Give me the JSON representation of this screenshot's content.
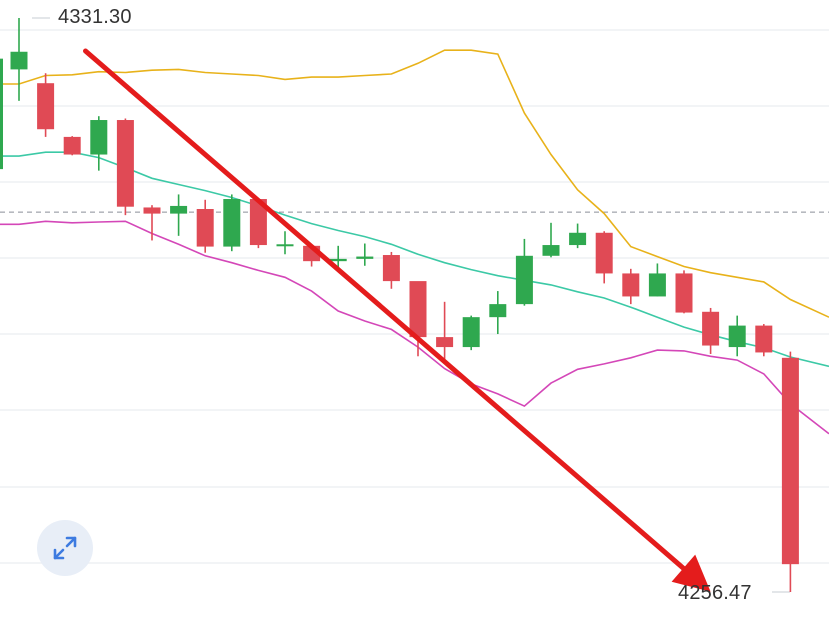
{
  "chart_data": {
    "type": "candlestick",
    "price_range": [
      4256.47,
      4331.3
    ],
    "grid": true,
    "labels": {
      "high": "4331.30",
      "low": "4256.47"
    },
    "colors": {
      "up": "#2fa84f",
      "down": "#e04a55",
      "band_upper": "#e8b21a",
      "band_middle": "#3cc9a6",
      "band_lower": "#d447b8",
      "trend_arrow": "#e41c1c",
      "grid": "#edf0f4",
      "dashed_ref": "#8a8f99"
    },
    "reference_price": 4306.0,
    "candles": [
      {
        "o": 4324.6,
        "h": 4331.3,
        "l": 4320.5,
        "c": 4326.9
      },
      {
        "o": 4322.8,
        "h": 4324.1,
        "l": 4315.8,
        "c": 4316.8
      },
      {
        "o": 4315.8,
        "h": 4315.9,
        "l": 4313.4,
        "c": 4313.5
      },
      {
        "o": 4313.5,
        "h": 4318.5,
        "l": 4311.4,
        "c": 4318.0
      },
      {
        "o": 4318.0,
        "h": 4318.2,
        "l": 4305.6,
        "c": 4306.7
      },
      {
        "o": 4306.6,
        "h": 4306.9,
        "l": 4302.3,
        "c": 4305.8
      },
      {
        "o": 4305.8,
        "h": 4308.3,
        "l": 4302.9,
        "c": 4306.8
      },
      {
        "o": 4306.4,
        "h": 4307.6,
        "l": 4300.7,
        "c": 4301.5
      },
      {
        "o": 4301.5,
        "h": 4308.3,
        "l": 4300.9,
        "c": 4307.7
      },
      {
        "o": 4307.7,
        "h": 4307.8,
        "l": 4301.3,
        "c": 4301.7
      },
      {
        "o": 4301.8,
        "h": 4303.5,
        "l": 4300.5,
        "c": 4301.8
      },
      {
        "o": 4301.6,
        "h": 4301.8,
        "l": 4298.9,
        "c": 4299.6
      },
      {
        "o": 4299.6,
        "h": 4301.6,
        "l": 4298.4,
        "c": 4299.9
      },
      {
        "o": 4299.9,
        "h": 4301.9,
        "l": 4299.0,
        "c": 4300.2
      },
      {
        "o": 4300.4,
        "h": 4300.8,
        "l": 4296.0,
        "c": 4297.0
      },
      {
        "o": 4297.0,
        "h": 4296.9,
        "l": 4287.2,
        "c": 4289.7
      },
      {
        "o": 4289.7,
        "h": 4294.3,
        "l": 4286.7,
        "c": 4288.4
      },
      {
        "o": 4288.4,
        "h": 4292.5,
        "l": 4288.0,
        "c": 4292.3
      },
      {
        "o": 4292.3,
        "h": 4295.7,
        "l": 4290.1,
        "c": 4294.0
      },
      {
        "o": 4294.0,
        "h": 4302.5,
        "l": 4293.8,
        "c": 4300.3
      },
      {
        "o": 4300.3,
        "h": 4304.6,
        "l": 4300.1,
        "c": 4301.7
      },
      {
        "o": 4301.7,
        "h": 4304.5,
        "l": 4301.3,
        "c": 4303.3
      },
      {
        "o": 4303.3,
        "h": 4303.5,
        "l": 4296.7,
        "c": 4298.0
      },
      {
        "o": 4298.0,
        "h": 4298.6,
        "l": 4294.0,
        "c": 4295.0
      },
      {
        "o": 4295.0,
        "h": 4299.3,
        "l": 4295.0,
        "c": 4298.0
      },
      {
        "o": 4298.0,
        "h": 4298.4,
        "l": 4292.8,
        "c": 4292.9
      },
      {
        "o": 4293.0,
        "h": 4293.5,
        "l": 4287.5,
        "c": 4288.6
      },
      {
        "o": 4288.4,
        "h": 4292.5,
        "l": 4287.2,
        "c": 4291.2
      },
      {
        "o": 4291.2,
        "h": 4291.4,
        "l": 4287.2,
        "c": 4287.7
      },
      {
        "o": 4287.0,
        "h": 4287.8,
        "l": 4256.47,
        "c": 4260.1
      }
    ],
    "bands": {
      "upper": [
        4322.7,
        4323.8,
        4323.9,
        4324.3,
        4324.2,
        4324.5,
        4324.6,
        4324.2,
        4324.0,
        4323.8,
        4323.3,
        4323.6,
        4323.6,
        4323.8,
        4324.0,
        4325.4,
        4327.1,
        4327.1,
        4326.6,
        4318.9,
        4313.5,
        4308.9,
        4305.8,
        4301.5,
        4300.2,
        4298.9,
        4298.1,
        4297.5,
        4296.9,
        4294.6
      ],
      "middle": [
        4313.3,
        4313.8,
        4313.8,
        4313.1,
        4311.8,
        4310.4,
        4309.6,
        4308.8,
        4307.9,
        4306.8,
        4305.6,
        4304.5,
        4303.6,
        4302.8,
        4301.8,
        4300.5,
        4299.4,
        4298.5,
        4297.7,
        4297.1,
        4296.5,
        4295.6,
        4294.8,
        4293.6,
        4292.3,
        4291.0,
        4290.0,
        4289.1,
        4288.3,
        4287.1
      ],
      "lower": [
        4304.4,
        4304.8,
        4304.6,
        4304.7,
        4304.8,
        4303.2,
        4301.8,
        4300.3,
        4299.4,
        4298.4,
        4297.5,
        4295.7,
        4293.1,
        4291.8,
        4290.7,
        4288.4,
        4285.6,
        4283.6,
        4282.3,
        4280.7,
        4283.7,
        4285.5,
        4286.2,
        4287.0,
        4288.0,
        4287.9,
        4287.2,
        4286.7,
        4284.9,
        4281.0
      ]
    },
    "trend_arrow": {
      "from_index": 2.5,
      "from_price": 4327.0,
      "to_index": 26.0,
      "to_price": 4256.5
    }
  },
  "controls": {
    "expand_icon": "expand-diagonal-icon"
  }
}
